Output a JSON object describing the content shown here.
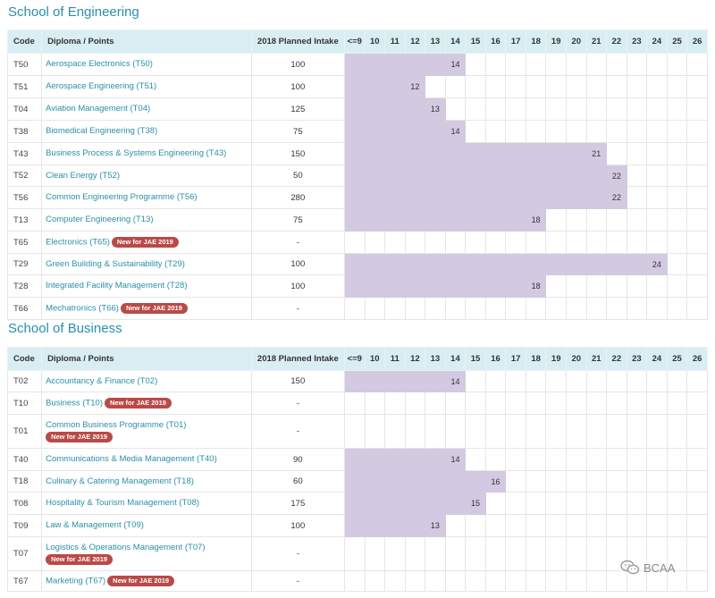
{
  "chart_data": {
    "type": "table",
    "columns": {
      "code": "Code",
      "diploma": "Diploma / Points",
      "intake": "2018 Planned Intake",
      "points": [
        "<=9",
        "10",
        "11",
        "12",
        "13",
        "14",
        "15",
        "16",
        "17",
        "18",
        "19",
        "20",
        "21",
        "22",
        "23",
        "24",
        "25",
        "26"
      ]
    },
    "badge_text": "New for JAE 2019",
    "fill_color": "#d3c9e0",
    "sections": [
      {
        "title": "School of Engineering",
        "rows": [
          {
            "code": "T50",
            "name": "Aerospace Electronics (T50)",
            "intake": "100",
            "points": 14,
            "new": false
          },
          {
            "code": "T51",
            "name": "Aerospace Engineering (T51)",
            "intake": "100",
            "points": 12,
            "new": false
          },
          {
            "code": "T04",
            "name": "Aviation Management (T04)",
            "intake": "125",
            "points": 13,
            "new": false
          },
          {
            "code": "T38",
            "name": "Biomedical Engineering (T38)",
            "intake": "75",
            "points": 14,
            "new": false
          },
          {
            "code": "T43",
            "name": "Business Process & Systems Engineering (T43)",
            "intake": "150",
            "points": 21,
            "new": false
          },
          {
            "code": "T52",
            "name": "Clean Energy (T52)",
            "intake": "50",
            "points": 22,
            "new": false
          },
          {
            "code": "T56",
            "name": "Common Engineering Programme (T56)",
            "intake": "280",
            "points": 22,
            "new": false
          },
          {
            "code": "T13",
            "name": "Computer Engineering (T13)",
            "intake": "75",
            "points": 18,
            "new": false
          },
          {
            "code": "T65",
            "name": "Electronics (T65)",
            "intake": "-",
            "points": null,
            "new": true,
            "badge_below": false
          },
          {
            "code": "T29",
            "name": "Green Building & Sustainability (T29)",
            "intake": "100",
            "points": 24,
            "new": false
          },
          {
            "code": "T28",
            "name": "Integrated Facility Management (T28)",
            "intake": "100",
            "points": 18,
            "new": false
          },
          {
            "code": "T66",
            "name": "Mechatronics (T66)",
            "intake": "-",
            "points": null,
            "new": true,
            "badge_below": false
          }
        ]
      },
      {
        "title": "School of Business",
        "rows": [
          {
            "code": "T02",
            "name": "Accountancy & Finance (T02)",
            "intake": "150",
            "points": 14,
            "new": false
          },
          {
            "code": "T10",
            "name": "Business (T10)",
            "intake": "-",
            "points": null,
            "new": true,
            "badge_below": false
          },
          {
            "code": "T01",
            "name": "Common Business Programme (T01)",
            "intake": "-",
            "points": null,
            "new": true,
            "badge_below": true
          },
          {
            "code": "T40",
            "name": "Communications & Media Management (T40)",
            "intake": "90",
            "points": 14,
            "new": false
          },
          {
            "code": "T18",
            "name": "Culinary & Catering Management (T18)",
            "intake": "60",
            "points": 16,
            "new": false
          },
          {
            "code": "T08",
            "name": "Hospitality & Tourism Management (T08)",
            "intake": "175",
            "points": 15,
            "new": false
          },
          {
            "code": "T09",
            "name": "Law & Management (T09)",
            "intake": "100",
            "points": 13,
            "new": false
          },
          {
            "code": "T07",
            "name": "Logistics & Operations Management (T07)",
            "intake": "-",
            "points": null,
            "new": true,
            "badge_below": true
          },
          {
            "code": "T67",
            "name": "Marketing (T67)",
            "intake": "-",
            "points": null,
            "new": true,
            "badge_below": false
          }
        ]
      }
    ]
  },
  "watermark": {
    "text": "BCAA",
    "icon": "wechat-icon"
  }
}
